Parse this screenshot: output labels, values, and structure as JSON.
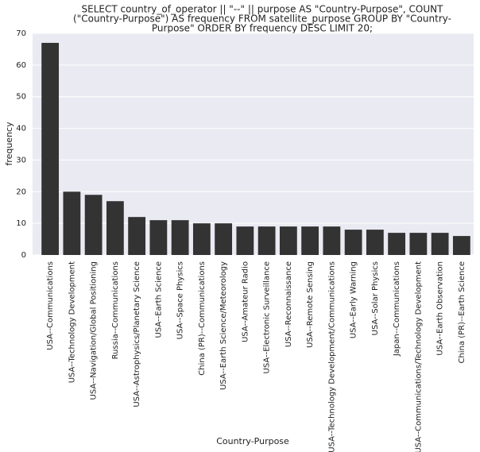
{
  "chart_data": {
    "type": "bar",
    "title": [
      "SELECT country_of_operator || \"--\" || purpose AS \"Country-Purpose\",  COUNT",
      "(\"Country-Purpose\") AS frequency FROM satellite_purpose GROUP BY \"Country-",
      "Purpose\" ORDER BY frequency DESC LIMIT 20;"
    ],
    "x_label": "Country-Purpose",
    "y_label": "frequency",
    "categories": [
      "USA--Communications",
      "USA--Technology Development",
      "USA--Navigation/Global Positioning",
      "Russia--Communications",
      "USA--Astrophysics/Planetary Science",
      "USA--Earth Science",
      "USA--Space Physics",
      "China (PR)--Communications",
      "USA--Earth Science/Meteorology",
      "USA--Amateur Radio",
      "USA--Electronic Surveillance",
      "USA--Reconnaissance",
      "USA--Remote Sensing",
      "USA--Technology Development/Communications",
      "USA--Early Warning",
      "USA--Solar Physics",
      "Japan--Communications",
      "USA--Communications/Technology Development",
      "USA--Earth Observation",
      "China (PR)--Earth Science"
    ],
    "values": [
      67,
      20,
      19,
      17,
      12,
      11,
      11,
      10,
      10,
      9,
      9,
      9,
      9,
      9,
      8,
      8,
      7,
      7,
      7,
      6
    ],
    "color": "#333333",
    "ylim": [
      0,
      70
    ],
    "yticks": [
      0,
      10,
      20,
      30,
      40,
      50,
      60,
      70
    ],
    "grid": true
  }
}
